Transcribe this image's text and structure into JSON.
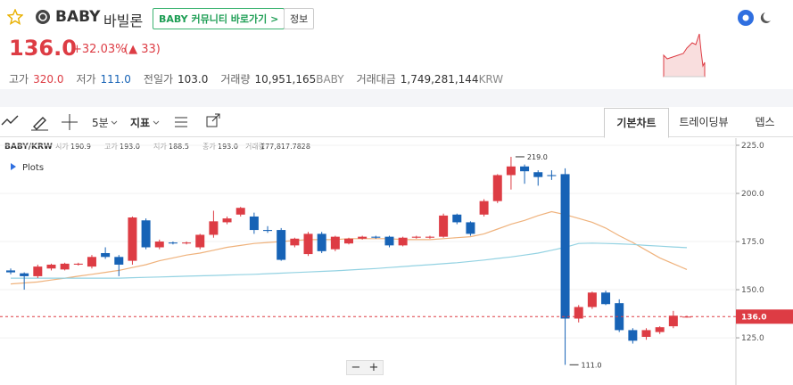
{
  "header": {
    "name": "BABY",
    "korean_name": "바빌론",
    "community_button": "BABY 커뮤니티 바로가기 >",
    "info_button": "정보"
  },
  "price": {
    "value": "136.0",
    "change_rate": "+32.03%",
    "change": "(▲ 33)"
  },
  "stats": [
    {
      "label": "고가",
      "value": "320.0"
    },
    {
      "label": "저가",
      "value": "111.0"
    },
    {
      "label": "전일가",
      "value": "103.0"
    },
    {
      "label": "거래량",
      "value": "10,951,165",
      "unit": "BABY"
    },
    {
      "label": "거래대금",
      "value": "1,749,281,144",
      "unit": "KRW"
    }
  ],
  "toolbar": {
    "interval": "5분",
    "indicator": "지표"
  },
  "tabs": [
    "기본차트",
    "트레이딩뷰",
    "뎁스"
  ],
  "zoom": [
    "−",
    "+"
  ],
  "chart": {
    "type": "candlestick",
    "symbol": "BABY/KRW",
    "legend": [
      {
        "label": "시가",
        "value": "190.9"
      },
      {
        "label": "고가",
        "value": "193.0"
      },
      {
        "label": "저가",
        "value": "188.5"
      },
      {
        "label": "종가",
        "value": "193.0"
      },
      {
        "label": "거래량",
        "value": "177,817.7828"
      }
    ],
    "plots_label": "Plots",
    "up_color": "#dd3c44",
    "down_color": "#1763b6",
    "open": [
      160,
      158.5,
      157,
      161,
      160.5,
      163,
      162,
      169,
      167,
      165,
      186,
      172,
      174.5,
      174,
      172,
      178.5,
      185,
      189,
      188,
      181,
      181,
      173,
      168.5,
      179,
      171,
      174,
      176.5,
      177.5,
      177.5,
      173,
      177,
      177,
      177.5,
      189,
      185,
      189,
      196,
      209.5,
      214,
      211,
      209.5,
      210,
      135,
      141,
      148.5,
      143,
      129,
      125.5,
      128,
      131,
      136
    ],
    "high": [
      161,
      159,
      163,
      163.5,
      164,
      164,
      168,
      172,
      168,
      188,
      187,
      176,
      175,
      175,
      179,
      191,
      188,
      193,
      190,
      183,
      182,
      177,
      180,
      180,
      178,
      177,
      178,
      178,
      178,
      177.5,
      178,
      178,
      189.5,
      189.5,
      185.5,
      197,
      210,
      219,
      215,
      212,
      212,
      213,
      142,
      149,
      149.5,
      145,
      130,
      130,
      131,
      139,
      136.5
    ],
    "low": [
      158,
      150,
      156,
      160,
      160,
      162.5,
      161,
      166,
      157,
      163,
      171,
      171,
      173.5,
      173.5,
      171,
      177,
      184,
      188,
      179,
      179.5,
      165,
      172,
      167.5,
      169,
      170,
      173.5,
      176,
      176.5,
      172,
      172.5,
      176.5,
      176.5,
      177,
      184,
      178,
      188,
      195,
      202,
      205,
      204,
      207,
      111,
      133,
      140,
      142,
      128,
      122,
      124,
      127,
      130,
      135.5
    ],
    "close": [
      159,
      157,
      162,
      163,
      163.5,
      163.5,
      167,
      167,
      163,
      187.5,
      172,
      175,
      174,
      174.5,
      178.5,
      185.5,
      187,
      192.5,
      181,
      180.5,
      165.5,
      176.5,
      179,
      170,
      177.5,
      176.5,
      177.5,
      177,
      173,
      177,
      177.5,
      177.5,
      188.5,
      185,
      179,
      196,
      209.5,
      214,
      211.5,
      208.5,
      209,
      135,
      141,
      148.5,
      142.5,
      129,
      123.5,
      129,
      130.5,
      136.5,
      136
    ],
    "lines": [
      {
        "color": "#efb27c",
        "values": [
          153,
          153.5,
          154,
          155,
          156,
          157,
          158,
          159,
          160,
          161.5,
          163,
          165,
          166.5,
          168,
          169,
          170.5,
          172,
          173,
          174,
          174.5,
          175,
          175.5,
          176,
          176,
          176,
          176.5,
          176.5,
          176.5,
          176.5,
          176,
          176,
          176,
          176.5,
          177,
          177.5,
          179,
          181.5,
          184,
          186,
          188.5,
          190.5,
          189,
          187,
          185,
          182,
          178,
          174.5,
          170.5,
          166.5,
          163.5,
          160.5
        ]
      },
      {
        "color": "#93d2e2",
        "values": [
          156,
          156,
          156,
          156,
          156,
          156,
          156,
          156,
          156,
          156.2,
          156.4,
          156.6,
          156.8,
          157,
          157.2,
          157.4,
          157.6,
          157.8,
          158,
          158.3,
          158.6,
          158.9,
          159.2,
          159.5,
          159.8,
          160.2,
          160.6,
          161,
          161.5,
          162,
          162.5,
          163,
          163.5,
          164,
          164.7,
          165.4,
          166.2,
          167,
          168,
          169,
          170.5,
          172,
          174,
          174.2,
          174,
          173.8,
          173.5,
          173,
          172.6,
          172.2,
          171.8
        ]
      }
    ],
    "ylim": [
      100.5,
      228.7
    ],
    "yticks": [
      {
        "value": 225,
        "label": "225.0"
      },
      {
        "value": 200,
        "label": "200.0"
      },
      {
        "value": 175,
        "label": "175.0"
      },
      {
        "value": 150,
        "label": "150.0"
      },
      {
        "value": 125,
        "label": "125.0"
      }
    ],
    "grid": true,
    "current": {
      "value": 136,
      "label": "136.0"
    },
    "high_marker": {
      "value": 219,
      "label": "219.0"
    },
    "low_marker": {
      "value": 111,
      "label": "111.0"
    }
  }
}
